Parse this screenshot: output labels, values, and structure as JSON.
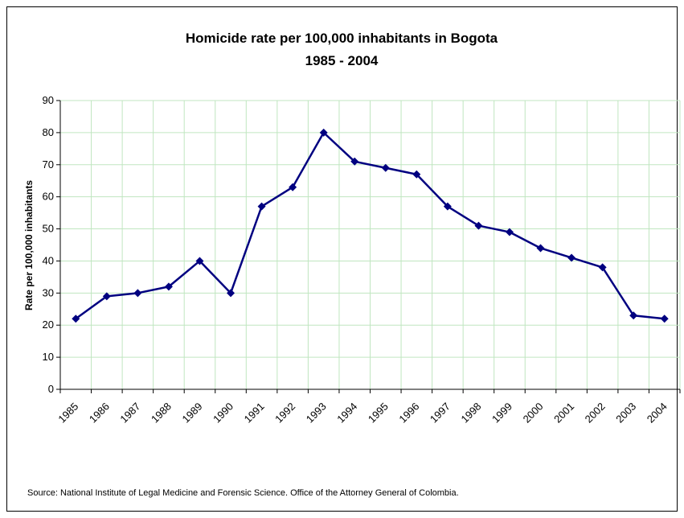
{
  "chart_data": {
    "type": "line",
    "title": "Homicide rate per 100,000 inhabitants in Bogota",
    "subtitle": "1985 - 2004",
    "ylabel": "Rate per 100,000 inhabitants",
    "xlabel": "",
    "categories": [
      "1985",
      "1986",
      "1987",
      "1988",
      "1989",
      "1990",
      "1991",
      "1992",
      "1993",
      "1994",
      "1995",
      "1996",
      "1997",
      "1998",
      "1999",
      "2000",
      "2001",
      "2002",
      "2003",
      "2004"
    ],
    "values": [
      22,
      29,
      30,
      32,
      40,
      30,
      57,
      63,
      80,
      71,
      69,
      67,
      57,
      51,
      49,
      44,
      41,
      38,
      23,
      22
    ],
    "ylim": [
      0,
      90
    ],
    "yticks": [
      0,
      10,
      20,
      30,
      40,
      50,
      60,
      70,
      80,
      90
    ],
    "grid": true,
    "legend": "none",
    "line_color": "#000080",
    "grid_color": "#c0e6c0",
    "marker": "diamond"
  },
  "source": "Source: National Institute of Legal Medicine and Forensic Science. Office of the Attorney General of Colombia."
}
